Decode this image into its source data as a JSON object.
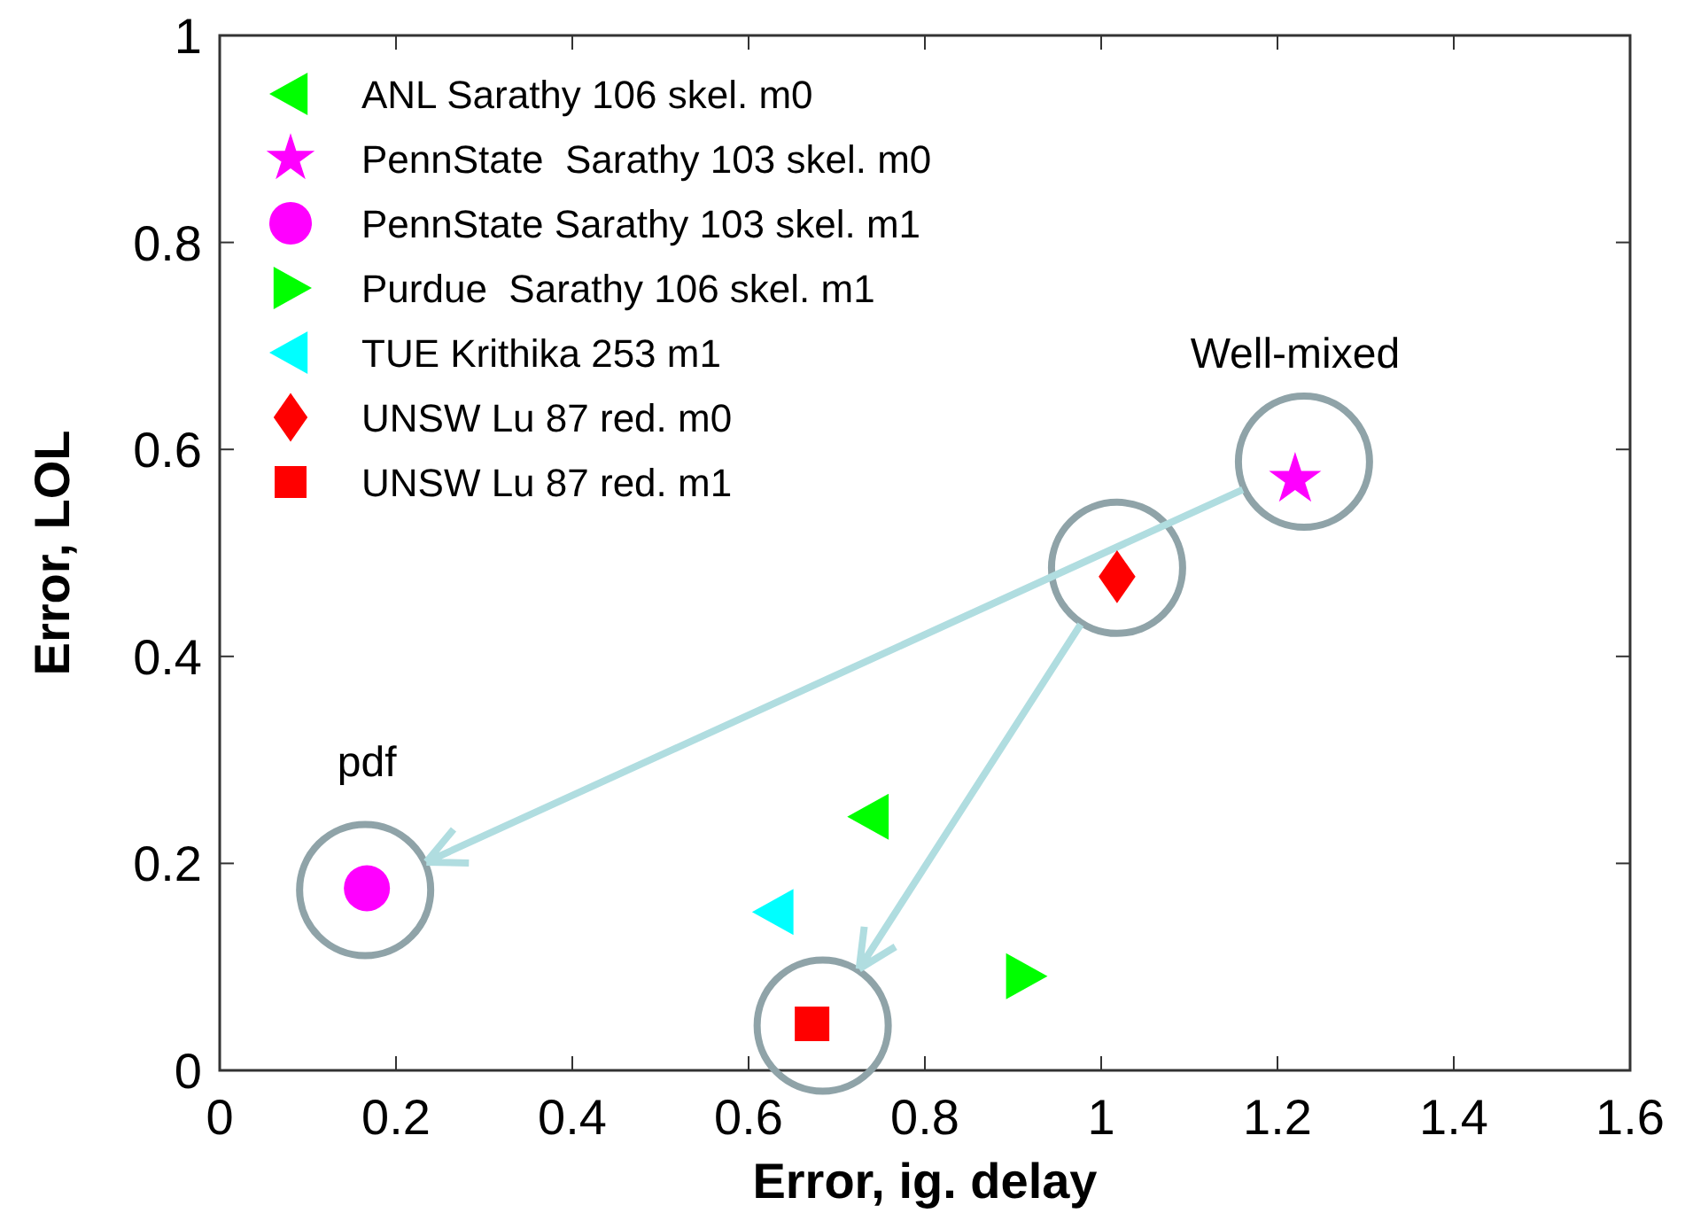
{
  "chart_data": {
    "type": "scatter",
    "xlabel": "Error, ig. delay",
    "ylabel": "Error, LOL",
    "xlim": [
      0,
      1.6
    ],
    "ylim": [
      0,
      1
    ],
    "xticks": [
      0,
      0.2,
      0.4,
      0.6,
      0.8,
      1,
      1.2,
      1.4,
      1.6
    ],
    "yticks": [
      0,
      0.2,
      0.4,
      0.6,
      0.8,
      1
    ],
    "grid": false,
    "legend": "top left",
    "series": [
      {
        "name": "ANL Sarathy 106 skel. m0",
        "color": "#00ff00",
        "marker": "triangle-left",
        "x": [
          0.738
        ],
        "values": [
          0.245
        ]
      },
      {
        "name": "PennState  Sarathy 103 skel. m0",
        "color": "#ff00ff",
        "marker": "star",
        "x": [
          1.22
        ],
        "values": [
          0.571
        ]
      },
      {
        "name": "PennState Sarathy 103 skel. m1",
        "color": "#ff00ff",
        "marker": "circle",
        "x": [
          0.167
        ],
        "values": [
          0.176
        ]
      },
      {
        "name": "Purdue  Sarathy 106 skel. m1",
        "color": "#00ff00",
        "marker": "triangle-right",
        "x": [
          0.913
        ],
        "values": [
          0.091
        ]
      },
      {
        "name": "TUE Krithika 253 m1",
        "color": "#00ffff",
        "marker": "triangle-left",
        "x": [
          0.63
        ],
        "values": [
          0.153
        ]
      },
      {
        "name": "UNSW Lu 87 red. m0",
        "color": "#ff0000",
        "marker": "diamond",
        "x": [
          1.018
        ],
        "values": [
          0.477
        ]
      },
      {
        "name": "UNSW Lu 87 red. m1",
        "color": "#ff0000",
        "marker": "square",
        "x": [
          0.672
        ],
        "values": [
          0.045
        ]
      }
    ],
    "annotations": [
      {
        "text": "Well-mixed",
        "x": 1.22,
        "y": 0.571
      },
      {
        "text": "pdf",
        "x": 0.167,
        "y": 0.176
      }
    ]
  }
}
